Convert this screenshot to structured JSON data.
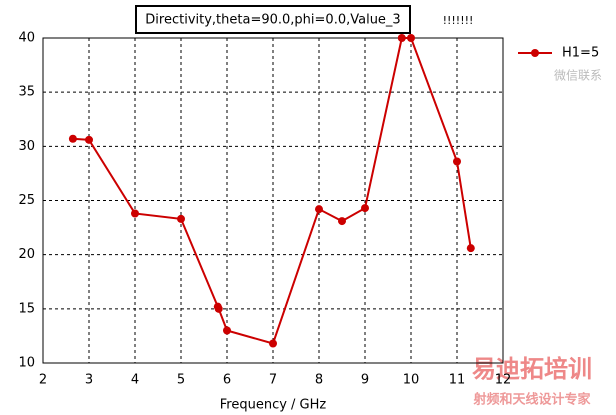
{
  "chart_data": {
    "type": "line",
    "title": "Directivity,theta=90.0,phi=0.0,Value_3",
    "x_label": "Frequency / GHz",
    "annotations": [
      "!!!!!!!"
    ],
    "watermarks": [
      "微信联系",
      "易迪拓培训",
      "射频和天线设计专家"
    ],
    "x": [
      2.65,
      3.0,
      4.0,
      5.0,
      5.8,
      5.82,
      6.0,
      7.0,
      8.0,
      8.5,
      9.0,
      9.8,
      10.0,
      11.0,
      11.3
    ],
    "series": [
      {
        "name": "H1=5",
        "color": "#cc0000",
        "values": [
          30.7,
          30.6,
          23.8,
          23.3,
          15.2,
          15.0,
          13.0,
          11.8,
          24.2,
          23.1,
          24.3,
          40.0,
          40.0,
          28.6,
          20.6
        ]
      }
    ],
    "xlim": [
      2,
      12
    ],
    "xticks": [
      2,
      3,
      4,
      5,
      6,
      7,
      8,
      9,
      10,
      11,
      12
    ],
    "ylim": [
      10,
      40
    ],
    "yticks": [
      10,
      15,
      20,
      25,
      30,
      35,
      40
    ],
    "grid": true,
    "legend": "right"
  }
}
